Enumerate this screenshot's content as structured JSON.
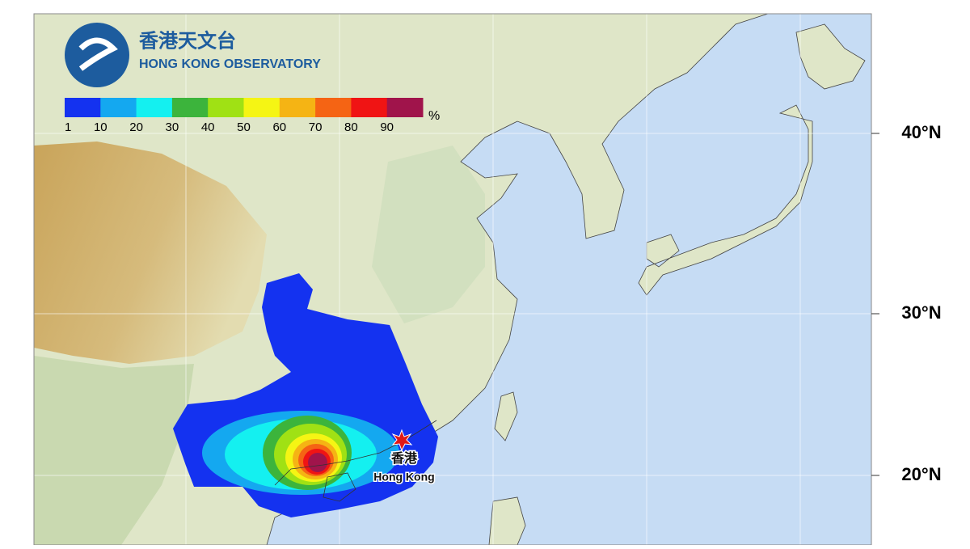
{
  "header": {
    "logo_zh": "香港天文台",
    "logo_en": "HONG KONG OBSERVATORY"
  },
  "legend": {
    "labels": [
      1,
      10,
      20,
      30,
      40,
      50,
      60,
      70,
      80,
      90
    ],
    "colors": [
      "#1432f0",
      "#14a8f0",
      "#14f0f0",
      "#3cb43c",
      "#a0e114",
      "#f5f514",
      "#f5b414",
      "#f56414",
      "#f01414",
      "#a0144b"
    ],
    "unit": "%"
  },
  "latitude_labels": [
    "40°N",
    "30°N",
    "20°N"
  ],
  "marker": {
    "label_zh": "香港",
    "label_en": "Hong Kong"
  }
}
